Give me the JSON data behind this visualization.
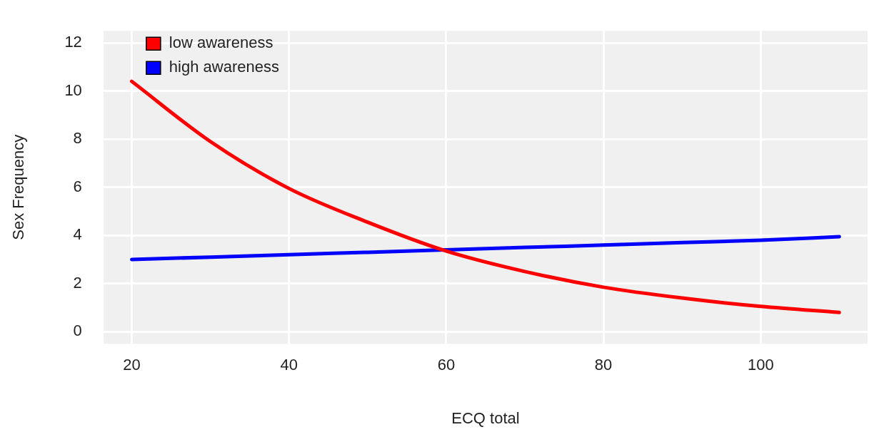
{
  "chart_data": {
    "type": "line",
    "xlabel": "ECQ total",
    "ylabel": "Sex Frequency",
    "x": [
      20,
      30,
      40,
      50,
      60,
      70,
      80,
      90,
      100,
      110
    ],
    "series": [
      {
        "name": "low awareness",
        "color": "#ff0000",
        "values": [
          10.4,
          7.9,
          5.95,
          4.55,
          3.35,
          2.5,
          1.85,
          1.4,
          1.05,
          0.8
        ]
      },
      {
        "name": "high awareness",
        "color": "#0000ff",
        "values": [
          3.0,
          3.1,
          3.2,
          3.3,
          3.4,
          3.5,
          3.6,
          3.7,
          3.8,
          3.95
        ]
      }
    ],
    "xlim": [
      16.4,
      113.6
    ],
    "xticks": [
      20,
      40,
      60,
      80,
      100
    ],
    "ylim": [
      -0.5,
      12.5
    ],
    "yticks": [
      0,
      2,
      4,
      6,
      8,
      10,
      12
    ],
    "grid": true,
    "legend": "top left",
    "marker": "none",
    "line_style": "solid"
  }
}
